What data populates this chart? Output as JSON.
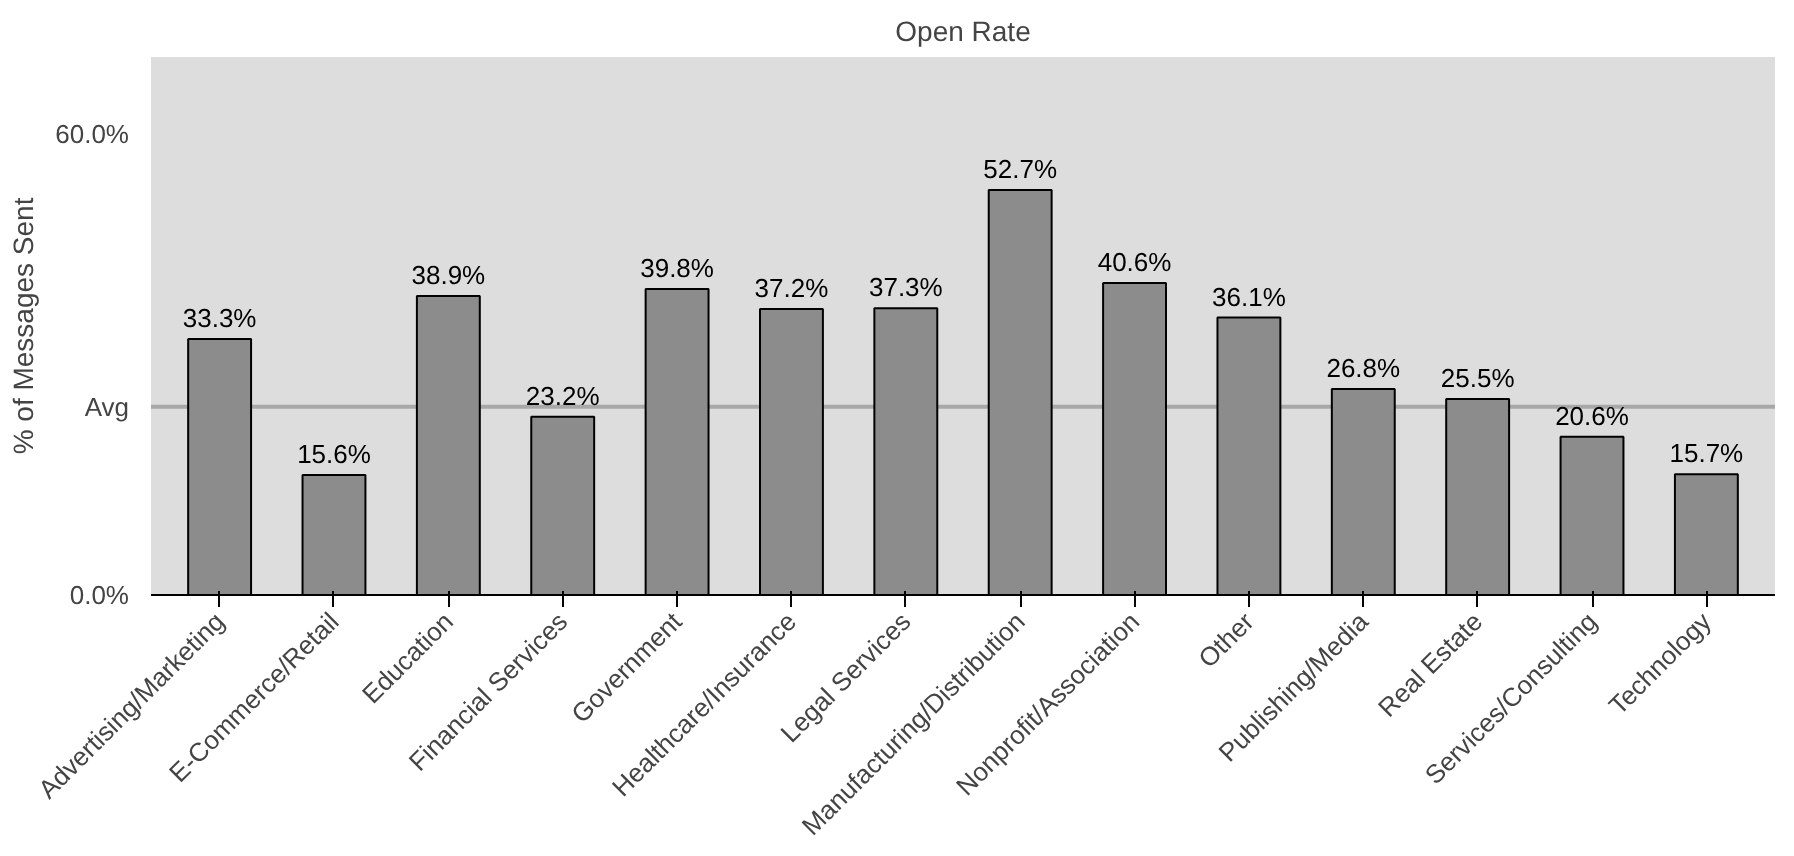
{
  "chart_data": {
    "type": "bar",
    "title": "Open Rate",
    "ylabel": "% of Messages Sent",
    "categories": [
      "Advertising/Marketing",
      "E-Commerce/Retail",
      "Education",
      "Financial Services",
      "Government",
      "Healthcare/Insurance",
      "Legal Services",
      "Manufacturing/Distribution",
      "Nonprofit/Association",
      "Other",
      "Publishing/Media",
      "Real Estate",
      "Services/Consulting",
      "Technology"
    ],
    "values": [
      33.3,
      15.6,
      38.9,
      23.2,
      39.8,
      37.2,
      37.3,
      52.7,
      40.6,
      36.1,
      26.8,
      25.5,
      20.6,
      15.7
    ],
    "color": "#8c8c8c",
    "value_labels": [
      "33.3%",
      "15.6%",
      "38.9%",
      "23.2%",
      "39.8%",
      "37.2%",
      "37.3%",
      "52.7%",
      "40.6%",
      "36.1%",
      "26.8%",
      "25.5%",
      "20.6%",
      "15.7%"
    ],
    "ylim": [
      0,
      70
    ],
    "yticks": [
      {
        "value": 0,
        "label": "0.0%"
      },
      {
        "value": 60,
        "label": "60.0%"
      }
    ],
    "ref_lines": [
      {
        "axis": "y",
        "value": 24.5,
        "label": "Avg",
        "color": "#a8a8a8"
      }
    ],
    "grid": false
  }
}
